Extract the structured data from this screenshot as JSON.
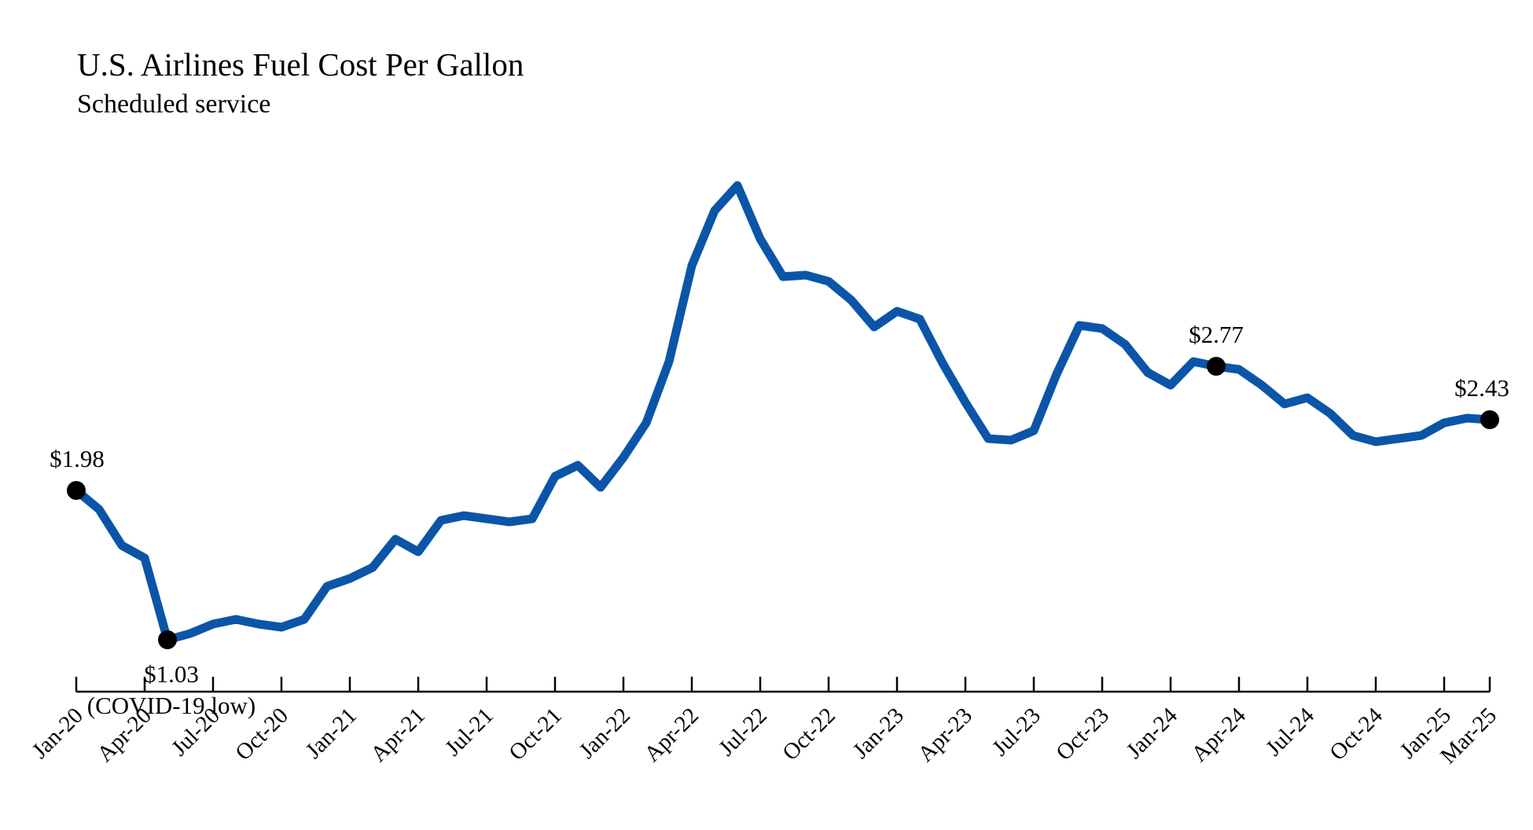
{
  "chart_data": {
    "type": "line",
    "title": "U.S. Airlines Fuel Cost Per Gallon",
    "subtitle": "Scheduled service",
    "xlabel": "",
    "ylabel": "",
    "ylim": [
      0.5,
      4.5
    ],
    "grid": false,
    "x_tick_labels": [
      "Jan-20",
      "Apr-20",
      "Jul-20",
      "Oct-20",
      "Jan-21",
      "Apr-21",
      "Jul-21",
      "Oct-21",
      "Jan-22",
      "Apr-22",
      "Jul-22",
      "Oct-22",
      "Jan-23",
      "Apr-23",
      "Jul-23",
      "Oct-23",
      "Jan-24",
      "Apr-24",
      "Jul-24",
      "Oct-24",
      "Jan-25",
      "Mar-25"
    ],
    "series": [
      {
        "name": "Fuel cost per gallon",
        "color": "#0b55a8",
        "x": [
          "Jan-20",
          "Feb-20",
          "Mar-20",
          "Apr-20",
          "May-20",
          "Jun-20",
          "Jul-20",
          "Aug-20",
          "Sep-20",
          "Oct-20",
          "Nov-20",
          "Dec-20",
          "Jan-21",
          "Feb-21",
          "Mar-21",
          "Apr-21",
          "May-21",
          "Jun-21",
          "Jul-21",
          "Aug-21",
          "Sep-21",
          "Oct-21",
          "Nov-21",
          "Dec-21",
          "Jan-22",
          "Feb-22",
          "Mar-22",
          "Apr-22",
          "May-22",
          "Jun-22",
          "Jul-22",
          "Aug-22",
          "Sep-22",
          "Oct-22",
          "Nov-22",
          "Dec-22",
          "Jan-23",
          "Feb-23",
          "Mar-23",
          "Apr-23",
          "May-23",
          "Jun-23",
          "Jul-23",
          "Aug-23",
          "Sep-23",
          "Oct-23",
          "Nov-23",
          "Dec-23",
          "Jan-24",
          "Feb-24",
          "Mar-24",
          "Apr-24",
          "May-24",
          "Jun-24",
          "Jul-24",
          "Aug-24",
          "Sep-24",
          "Oct-24",
          "Nov-24",
          "Dec-24",
          "Jan-25",
          "Feb-25",
          "Mar-25"
        ],
        "values": [
          1.98,
          1.86,
          1.63,
          1.55,
          1.03,
          1.07,
          1.13,
          1.16,
          1.13,
          1.11,
          1.16,
          1.37,
          1.42,
          1.49,
          1.67,
          1.59,
          1.79,
          1.82,
          1.8,
          1.78,
          1.8,
          2.07,
          2.14,
          2.0,
          2.19,
          2.41,
          2.8,
          3.41,
          3.76,
          3.92,
          3.58,
          3.34,
          3.35,
          3.31,
          3.19,
          3.02,
          3.12,
          3.07,
          2.79,
          2.54,
          2.31,
          2.3,
          2.36,
          2.72,
          3.03,
          3.01,
          2.91,
          2.73,
          2.65,
          2.8,
          2.77,
          2.75,
          2.65,
          2.53,
          2.57,
          2.47,
          2.33,
          2.29,
          2.31,
          2.33,
          2.41,
          2.44,
          2.43
        ]
      }
    ],
    "annotations": [
      {
        "x": "Jan-20",
        "value": 1.98,
        "label": "$1.98",
        "note": "",
        "position": "above"
      },
      {
        "x": "May-20",
        "value": 1.03,
        "label": "$1.03",
        "note": "(COVID-19 low)",
        "position": "below"
      },
      {
        "x": "Mar-24",
        "value": 2.77,
        "label": "$2.77",
        "note": "",
        "position": "above"
      },
      {
        "x": "Mar-25",
        "value": 2.43,
        "label": "$2.43",
        "note": "",
        "position": "above"
      }
    ]
  }
}
